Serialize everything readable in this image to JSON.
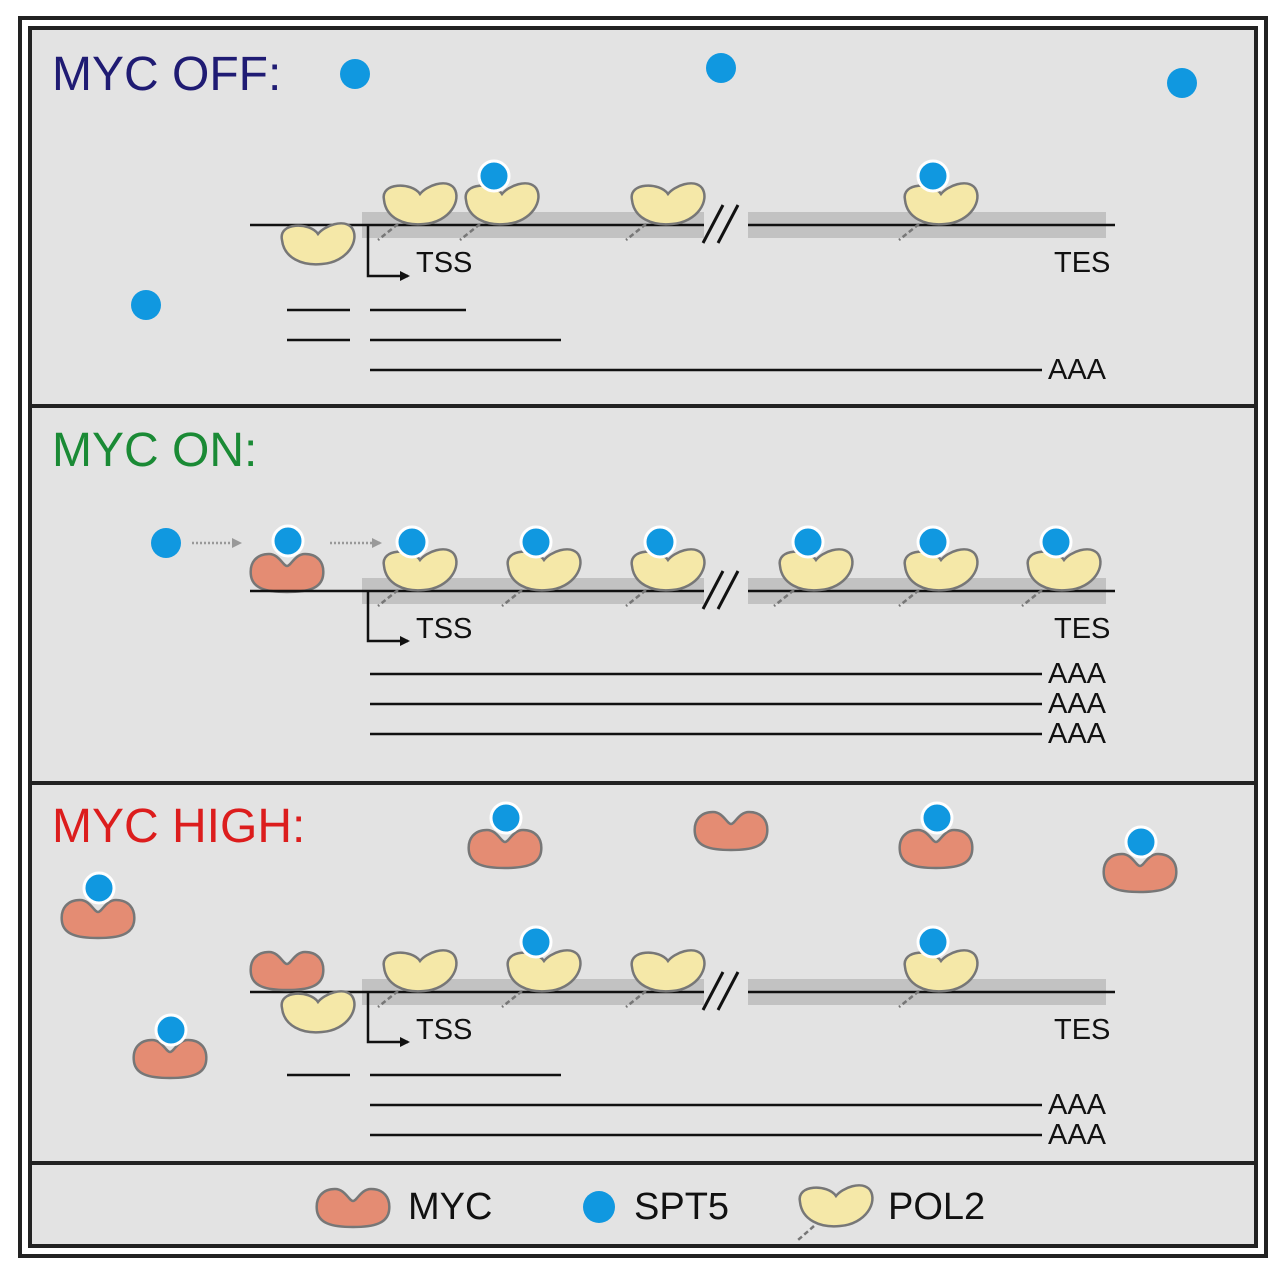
{
  "panels": [
    {
      "title": "MYC OFF:",
      "title_color": "#1f1b73"
    },
    {
      "title": "MYC ON:",
      "title_color": "#1a8a35"
    },
    {
      "title": "MYC HIGH:",
      "title_color": "#dc1d1d"
    }
  ],
  "gene_labels": {
    "tss": "TSS",
    "tes": "TES",
    "polya": "AAA"
  },
  "legend": {
    "myc": "MYC",
    "spt5": "SPT5",
    "pol2": "POL2"
  },
  "colors": {
    "background": "#e3e3e3",
    "frame": "#222222",
    "myc": "#e48c73",
    "spt5": "#1098e0",
    "pol2": "#f5e8a8",
    "outline": "#777777",
    "gene_shade": "#c2c2c2"
  }
}
